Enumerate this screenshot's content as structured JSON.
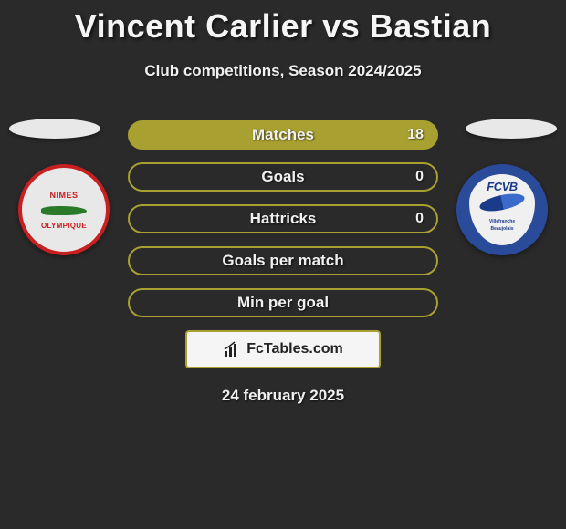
{
  "title": "Vincent Carlier vs Bastian",
  "subtitle": "Club competitions, Season 2024/2025",
  "date": "24 february 2025",
  "footer_brand": "FcTables.com",
  "background_color": "#2a2a2a",
  "players": {
    "left": {
      "club_top": "NIMES",
      "club_bottom": "OLYMPIQUE",
      "badge_border_color": "#c82020",
      "badge_bg_color": "#e8e8e8",
      "motif_color": "#2a7a2a"
    },
    "right": {
      "club_short": "FCVB",
      "club_full_1": "Villefranche",
      "club_full_2": "Beaujolais",
      "badge_bg_color": "#2a4a9a",
      "shield_bg_color": "#f0f0f0",
      "text_color": "#1a3a8a"
    }
  },
  "stats": {
    "pill_border_color": "#a8a030",
    "pill_fill_color": "#a8a030",
    "rows": [
      {
        "label": "Matches",
        "left_value": "",
        "right_value": "18",
        "fill": true
      },
      {
        "label": "Goals",
        "left_value": "",
        "right_value": "0",
        "fill": false
      },
      {
        "label": "Hattricks",
        "left_value": "",
        "right_value": "0",
        "fill": false
      },
      {
        "label": "Goals per match",
        "left_value": "",
        "right_value": "",
        "fill": false
      },
      {
        "label": "Min per goal",
        "left_value": "",
        "right_value": "",
        "fill": false
      }
    ]
  },
  "typography": {
    "title_fontsize": 36,
    "subtitle_fontsize": 17,
    "stat_label_fontsize": 17,
    "stat_value_fontsize": 16,
    "date_fontsize": 17
  }
}
